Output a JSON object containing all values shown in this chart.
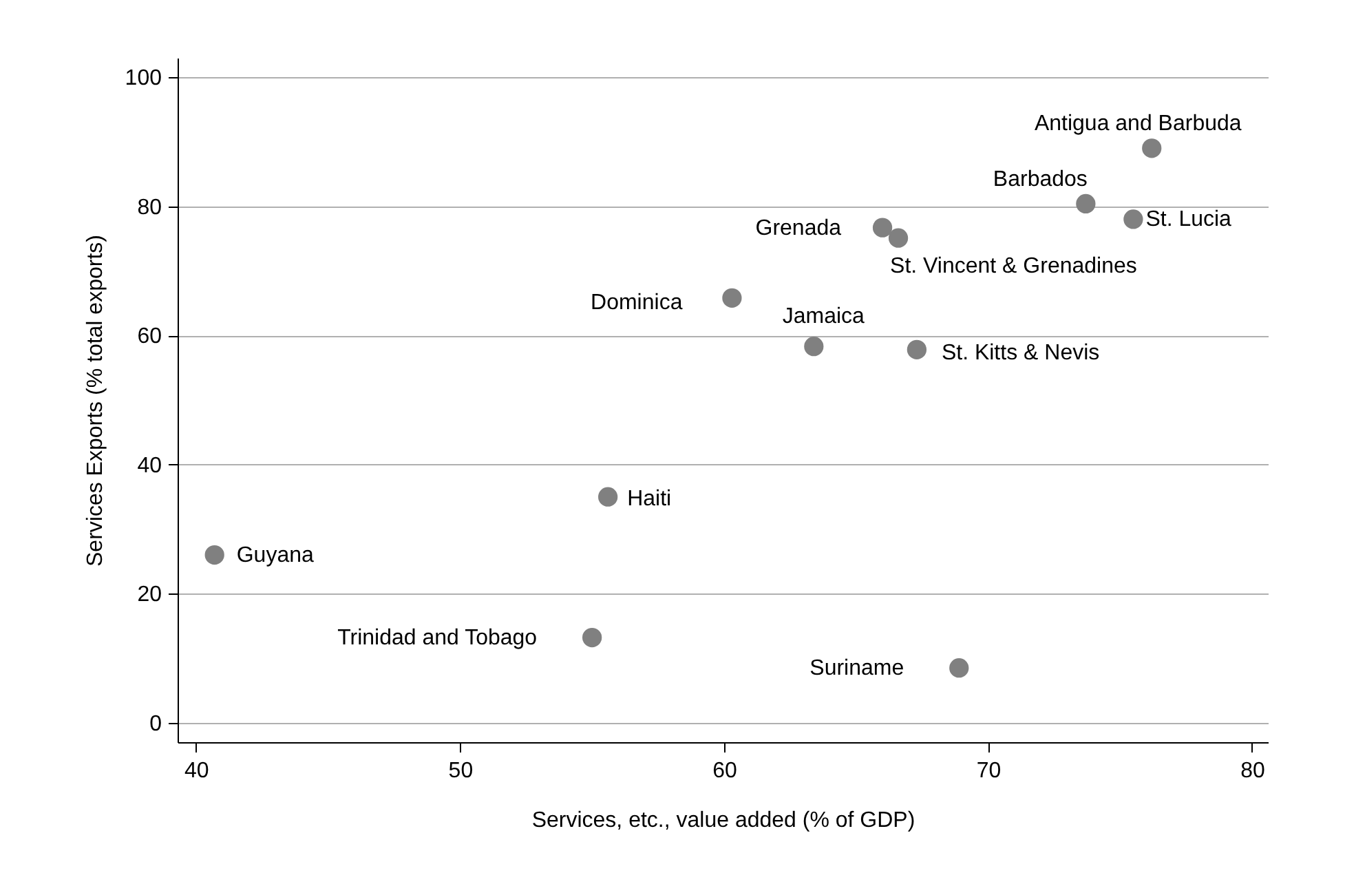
{
  "chart_data": {
    "type": "scatter",
    "xlabel": "Services, etc., value added (% of GDP)",
    "ylabel": "Services Exports (% total exports)",
    "xlim": [
      39.3,
      80.6
    ],
    "ylim": [
      -3,
      103
    ],
    "xticks": [
      40,
      50,
      60,
      70,
      80
    ],
    "yticks": [
      0,
      20,
      40,
      60,
      80,
      100
    ],
    "grid": "y",
    "marker": "circle",
    "series": [
      {
        "color": "#808080",
        "x": [
          76.2,
          73.7,
          75.5,
          66.0,
          66.6,
          60.3,
          63.4,
          67.3,
          55.6,
          40.7,
          55.0,
          68.9
        ],
        "values": [
          89.0,
          80.4,
          78.0,
          76.7,
          75.1,
          65.8,
          58.3,
          57.8,
          35.0,
          26.0,
          13.2,
          8.5
        ]
      }
    ],
    "annotations": [
      {
        "text": "Antigua and Barbuda",
        "x": 76.2,
        "y": 89.0
      },
      {
        "text": "Barbados",
        "x": 73.7,
        "y": 80.4
      },
      {
        "text": "St. Lucia",
        "x": 75.5,
        "y": 78.0
      },
      {
        "text": "Grenada",
        "x": 66.0,
        "y": 76.7
      },
      {
        "text": "St. Vincent & Grenadines",
        "x": 66.6,
        "y": 75.1
      },
      {
        "text": "Dominica",
        "x": 60.3,
        "y": 65.8
      },
      {
        "text": "Jamaica",
        "x": 63.4,
        "y": 58.3
      },
      {
        "text": "St. Kitts & Nevis",
        "x": 67.3,
        "y": 57.8
      },
      {
        "text": "Haiti",
        "x": 55.6,
        "y": 35.0
      },
      {
        "text": "Guyana",
        "x": 40.7,
        "y": 26.0
      },
      {
        "text": "Trinidad and Tobago",
        "x": 55.0,
        "y": 13.2
      },
      {
        "text": "Suriname",
        "x": 68.9,
        "y": 8.5
      }
    ]
  }
}
